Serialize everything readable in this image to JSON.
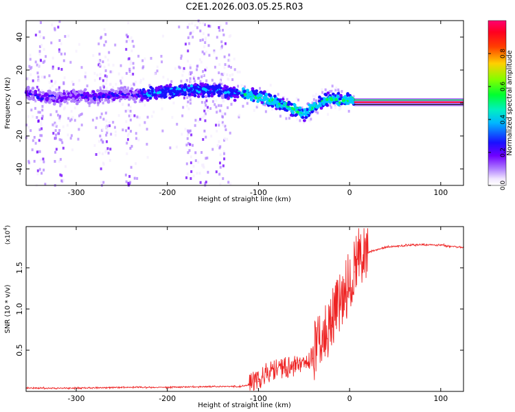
{
  "title": "C2E1.2026.003.05.25.R03",
  "chart_data": [
    {
      "type": "heatmap",
      "title": "C2E1.2026.003.05.25.R03",
      "xlabel": "Height of straight line (km)",
      "ylabel": "Frequency (Hz)",
      "xlim": [
        -355,
        125
      ],
      "ylim": [
        -50,
        50
      ],
      "x_ticks": [
        -300,
        -200,
        -100,
        0,
        100
      ],
      "x_tick_labels": [
        "-300",
        "-200",
        "-100",
        "0",
        "100"
      ],
      "y_ticks": [
        -40,
        -20,
        0,
        20,
        40
      ],
      "y_tick_labels": [
        "-40",
        "-20",
        "0",
        "20",
        "40"
      ],
      "colorbar": {
        "label": "Normalized spectral amplitude",
        "range": [
          0,
          1
        ],
        "ticks": [
          0.0,
          0.2,
          0.4,
          0.6,
          0.8
        ],
        "tick_labels": [
          "0.0",
          "0.2",
          "0.4",
          "0.6",
          "0.8"
        ],
        "colormap": [
          "#e8d6ff",
          "#7a00ff",
          "#1010ff",
          "#00d0ff",
          "#00ff40",
          "#d0ff00",
          "#ff3000",
          "#ff0050"
        ]
      },
      "center_frequency_trace": {
        "x": [
          -355,
          -340,
          -320,
          -300,
          -280,
          -260,
          -240,
          -220,
          -200,
          -180,
          -160,
          -140,
          -120,
          -100,
          -90,
          -80,
          -70,
          -60,
          -55,
          -50,
          -45,
          -40,
          -30,
          -20,
          -10,
          0,
          5
        ],
        "y": [
          6,
          4,
          3,
          4,
          4,
          5,
          5,
          6,
          7,
          8,
          8,
          7,
          6,
          4,
          2,
          0,
          -2,
          -4,
          -6,
          -7,
          -5,
          -3,
          1,
          2,
          2,
          2,
          1
        ]
      },
      "steady_band": {
        "x_start": 5,
        "x_end": 125,
        "frequency": 0.5,
        "amplitude": 1.0
      },
      "noise_columns_x": [
        -340,
        -320,
        -270,
        -240,
        -175,
        -160,
        -140
      ]
    },
    {
      "type": "line",
      "xlabel": "Height of straight line (km)",
      "ylabel": "SNR (10 * v/v)",
      "multiplier_label": "(x10",
      "multiplier_exponent": "4",
      "xlim": [
        -355,
        125
      ],
      "ylim": [
        0,
        2.0
      ],
      "x_ticks": [
        -300,
        -200,
        -100,
        0,
        100
      ],
      "x_tick_labels": [
        "-300",
        "-200",
        "-100",
        "0",
        "100"
      ],
      "y_ticks": [
        0.5,
        1.0,
        1.5
      ],
      "y_tick_labels": [
        "0.5",
        "1.0",
        "1.5"
      ],
      "color": "#ee2222",
      "series": [
        {
          "name": "SNR",
          "x": [
            -355,
            -300,
            -250,
            -200,
            -150,
            -120,
            -110,
            -100,
            -90,
            -80,
            -70,
            -60,
            -50,
            -40,
            -30,
            -20,
            -10,
            0,
            5,
            10,
            15,
            20,
            30,
            40,
            60,
            80,
            100,
            110,
            125
          ],
          "y": [
            0.04,
            0.04,
            0.05,
            0.05,
            0.06,
            0.06,
            0.08,
            0.12,
            0.2,
            0.25,
            0.26,
            0.28,
            0.33,
            0.4,
            0.55,
            0.8,
            1.05,
            1.25,
            1.45,
            1.55,
            1.62,
            1.68,
            1.72,
            1.75,
            1.77,
            1.78,
            1.78,
            1.76,
            1.75
          ]
        }
      ]
    }
  ]
}
